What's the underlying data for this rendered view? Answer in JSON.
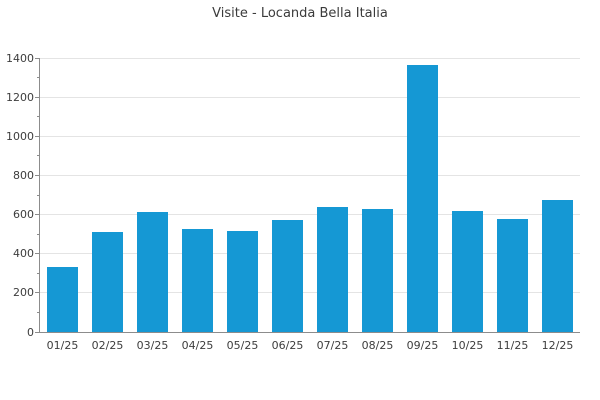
{
  "chart_data": {
    "type": "bar",
    "title": "Visite - Locanda Bella Italia",
    "categories": [
      "01/25",
      "02/25",
      "03/25",
      "04/25",
      "05/25",
      "06/25",
      "07/25",
      "08/25",
      "09/25",
      "10/25",
      "11/25",
      "12/25"
    ],
    "values": [
      330,
      510,
      615,
      525,
      515,
      570,
      640,
      630,
      1365,
      620,
      575,
      675
    ],
    "xlabel": "",
    "ylabel": "",
    "ylim": [
      0,
      1400
    ],
    "y_major_step": 200,
    "y_minor_step": 100,
    "y_tick_labels": [
      "0",
      "200",
      "400",
      "600",
      "800",
      "1000",
      "1200",
      "1400"
    ],
    "grid": "horizontal-major",
    "legend": "none",
    "colors": {
      "bar": "#1598d4",
      "grid": "#e4e4e4",
      "axis": "#8c8c8c",
      "tick_label": "#3d3d3d",
      "title": "#3b3b3b",
      "background": "#ffffff"
    }
  }
}
